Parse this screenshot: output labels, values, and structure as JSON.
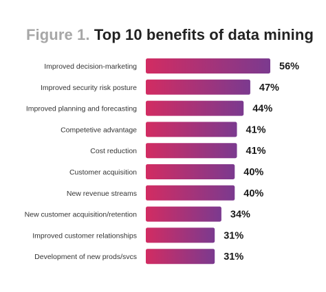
{
  "figure": {
    "title_prefix": "Figure 1.",
    "title_main": "Top 10 benefits of data mining"
  },
  "colors": {
    "bar_start": "#d22c62",
    "bar_end": "#7b3a8f",
    "title_prefix": "#a7a7a7",
    "title_main": "#222222"
  },
  "chart_data": {
    "type": "bar",
    "orientation": "horizontal",
    "title": "Figure 1. Top 10 benefits of data mining",
    "categories": [
      "Improved decision-marketing",
      "Improved security risk posture",
      "Improved planning and forecasting",
      "Competetive advantage",
      "Cost reduction",
      "Customer acquisition",
      "New revenue streams",
      "New customer acquisition/retention",
      "Improved customer relationships",
      "Development of new prods/svcs"
    ],
    "values": [
      56,
      47,
      44,
      41,
      41,
      40,
      40,
      34,
      31,
      31
    ],
    "value_labels": [
      "56%",
      "47%",
      "44%",
      "41%",
      "41%",
      "40%",
      "40%",
      "34%",
      "31%",
      "31%"
    ],
    "unit": "%",
    "grid": false,
    "legend": "none"
  }
}
